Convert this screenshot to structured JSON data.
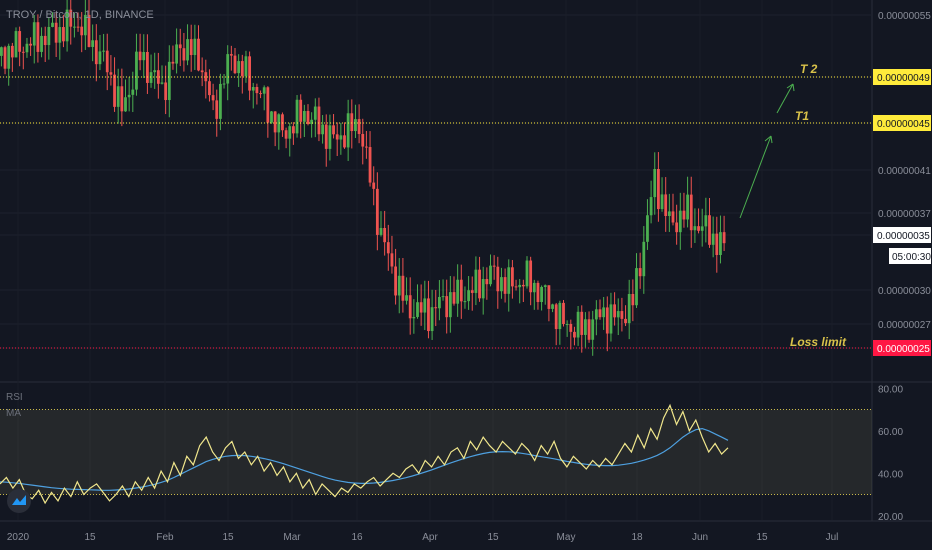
{
  "header": {
    "title": "TROY / Bitcoin, 1D, BINANCE"
  },
  "indicator": {
    "rsi_label": "RSI",
    "ma_label": "MA"
  },
  "colors": {
    "up": "#26a69a",
    "upBody": "#4caf50",
    "down": "#ef5350",
    "target": "#ffeb3b",
    "loss": "#ff1744",
    "rsi": "#f0e68c",
    "ma": "#4ea0e0",
    "arrow": "#4caf50",
    "annot": "#d9c24a"
  },
  "chart_data": [
    {
      "type": "candlestick",
      "title": "TROY / Bitcoin, 1D, BINANCE",
      "xlabel": "",
      "ylabel": "",
      "x_ticks": [
        "2020",
        "15",
        "Feb",
        "15",
        "Mar",
        "16",
        "Apr",
        "15",
        "May",
        "18",
        "Jun",
        "15",
        "Jul"
      ],
      "y_ticks": [
        "0.00000055",
        "0.00000049",
        "0.00000045",
        "0.00000041",
        "0.00000037",
        "0.00000035",
        "0.00000030",
        "0.00000027",
        "0.00000025"
      ],
      "ylim": [
        2.3e-07,
        5.7e-07
      ],
      "annotations": {
        "targets": [
          {
            "label": "T 2",
            "value": 4.9e-07,
            "price_label": "0.00000049"
          },
          {
            "label": "T1",
            "value": 4.5e-07,
            "price_label": "0.00000045"
          }
        ],
        "loss_limit": {
          "label": "Loss limit",
          "value": 2.5e-07,
          "price_label": "0.00000025"
        },
        "last_price": {
          "price_label": "0.00000035",
          "countdown": "05:00:30"
        }
      }
    },
    {
      "type": "line",
      "title": "RSI",
      "y_ticks": [
        "80.00",
        "60.00",
        "40.00",
        "20.00"
      ],
      "ylim": [
        18,
        82
      ],
      "bands": [
        30,
        70
      ],
      "series": [
        {
          "name": "RSI",
          "values": [
            35,
            38,
            33,
            37,
            30,
            28,
            32,
            26,
            31,
            27,
            33,
            29,
            36,
            30,
            33,
            35,
            31,
            27,
            30,
            34,
            29,
            36,
            32,
            38,
            33,
            41,
            36,
            45,
            39,
            48,
            44,
            53,
            57,
            50,
            46,
            52,
            55,
            47,
            50,
            44,
            48,
            41,
            45,
            39,
            43,
            36,
            40,
            33,
            37,
            30,
            35,
            32,
            29,
            33,
            31,
            35,
            33,
            36,
            38,
            34,
            37,
            40,
            38,
            42,
            44,
            40,
            46,
            43,
            48,
            44,
            50,
            52,
            47,
            55,
            51,
            57,
            53,
            50,
            55,
            52,
            49,
            54,
            51,
            46,
            53,
            49,
            55,
            47,
            43,
            48,
            45,
            42,
            46,
            43,
            47,
            44,
            49,
            54,
            50,
            58,
            52,
            61,
            56,
            66,
            72,
            63,
            69,
            60,
            65,
            57,
            50,
            54,
            49,
            52
          ]
        },
        {
          "name": "MA",
          "values": [
            36,
            35.8,
            35.5,
            35.2,
            34.8,
            34.4,
            34,
            33.6,
            33.2,
            32.9,
            32.7,
            32.5,
            32.4,
            32.3,
            32.2,
            32.1,
            32,
            32,
            32.1,
            32.3,
            32.6,
            33,
            33.5,
            34.1,
            34.8,
            35.7,
            36.7,
            38,
            39.5,
            41,
            42.5,
            44,
            45.5,
            46.5,
            47.3,
            48,
            48.3,
            48.4,
            48.3,
            48,
            47.5,
            46.9,
            46.2,
            45.4,
            44.5,
            43.5,
            42.5,
            41.5,
            40.5,
            39.5,
            38.5,
            37.6,
            36.8,
            36.2,
            35.7,
            35.4,
            35.2,
            35.2,
            35.4,
            35.7,
            36.1,
            36.6,
            37.2,
            37.9,
            38.7,
            39.6,
            40.6,
            41.6,
            42.7,
            43.8,
            44.9,
            45.9,
            46.9,
            47.8,
            48.6,
            49.3,
            49.8,
            50.1,
            50.2,
            50.1,
            49.8,
            49.4,
            48.9,
            48.3,
            47.8,
            47.3,
            46.8,
            46.2,
            45.6,
            45.1,
            44.6,
            44.2,
            43.9,
            43.7,
            43.6,
            43.6,
            43.8,
            44.2,
            44.7,
            45.4,
            46.2,
            47.2,
            48.4,
            50,
            52,
            54.5,
            57,
            59,
            60.5,
            61,
            60,
            58.5,
            57,
            55.5
          ]
        }
      ]
    }
  ]
}
